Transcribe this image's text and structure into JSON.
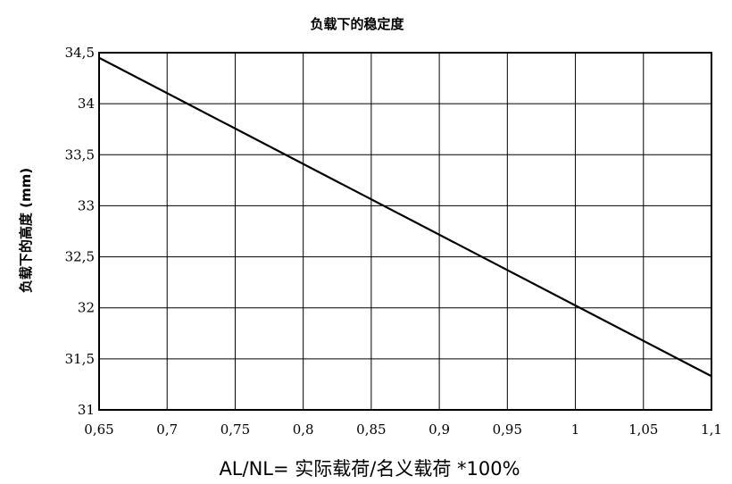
{
  "chart_data": {
    "type": "line",
    "title": "负载下的稳定度",
    "xlabel": "AL/NL= 实际载荷/名义载荷 *100%",
    "ylabel": "负载下的高度 (mm)",
    "xlim": [
      0.65,
      1.1
    ],
    "ylim": [
      31,
      34.5
    ],
    "x_ticks": [
      "0,65",
      "0,7",
      "0,75",
      "0,8",
      "0,85",
      "0,9",
      "0,95",
      "1",
      "1,05",
      "1,1"
    ],
    "y_ticks": [
      "31",
      "31,5",
      "32",
      "32,5",
      "33",
      "33,5",
      "34",
      "34,5"
    ],
    "grid": true,
    "series": [
      {
        "x": [
          0.65,
          1.1
        ],
        "y": [
          34.45,
          31.33
        ]
      }
    ]
  }
}
